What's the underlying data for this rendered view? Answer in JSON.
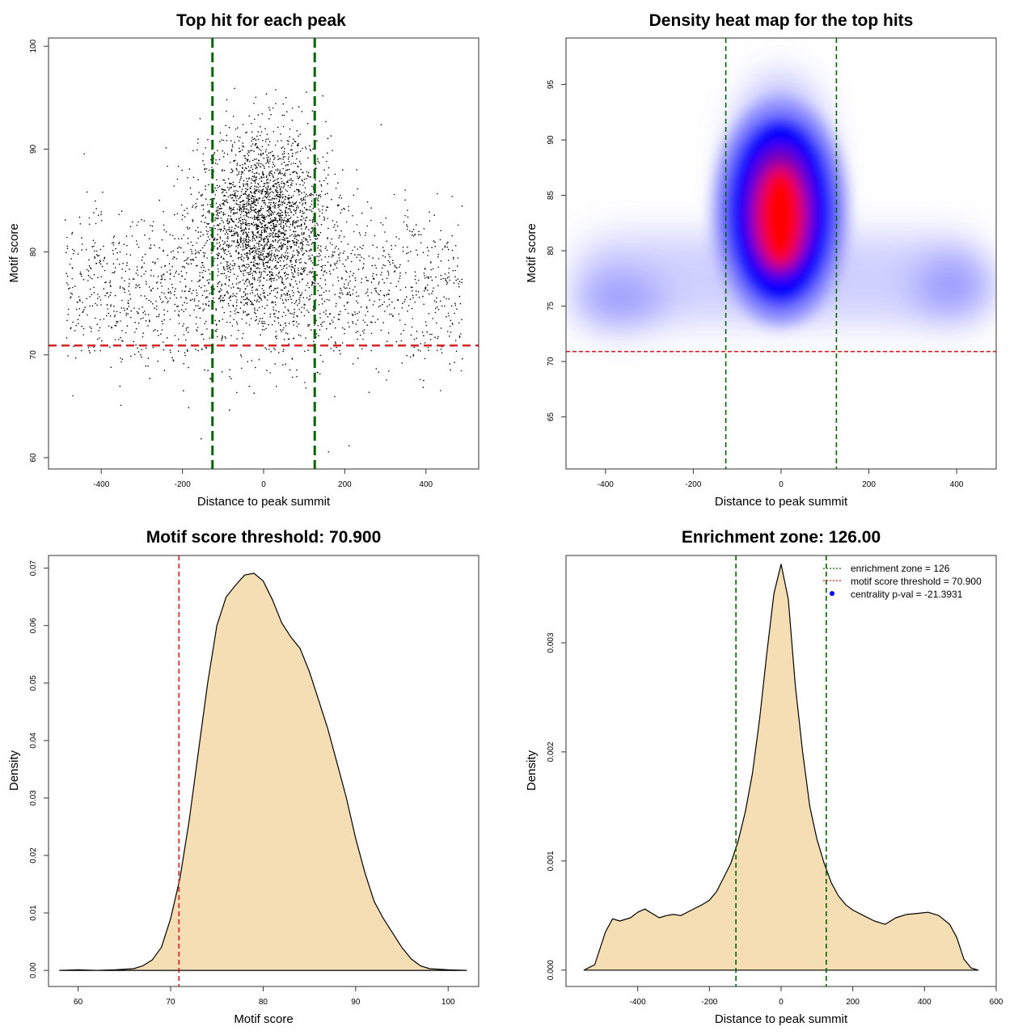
{
  "chart_data": [
    {
      "id": "scatter",
      "type": "scatter",
      "title": "Top hit for each peak",
      "xlabel": "Distance to peak summit",
      "ylabel": "Motif score",
      "xlim": [
        -530,
        530
      ],
      "ylim": [
        58.9,
        100.8
      ],
      "xticks": [
        -400,
        -200,
        0,
        200,
        400
      ],
      "yticks": [
        60,
        70,
        80,
        90,
        100
      ],
      "threshold_y": 70.9,
      "zone_x": [
        -126,
        126
      ],
      "point_distribution": {
        "uniform_background_points": 1600,
        "central_cluster_points": 2400,
        "background_x_range": [
          -490,
          490
        ],
        "background_score_mean": 76.5,
        "background_score_sd": 3.8,
        "cluster_x_mean": 0,
        "cluster_x_sd": 80,
        "cluster_score_mean": 83,
        "cluster_score_sd": 4.3
      },
      "colors": {
        "points": "#000000",
        "threshold": "#d7191c",
        "zone": "#006400"
      }
    },
    {
      "id": "heatmap",
      "type": "heatmap",
      "title": "Density heat map for the top hits",
      "xlabel": "Distance to peak summit",
      "ylabel": "Motif score",
      "xlim": [
        -490,
        490
      ],
      "ylim": [
        60.3,
        99.2
      ],
      "xticks": [
        -400,
        -200,
        0,
        200,
        400
      ],
      "yticks": [
        65,
        70,
        75,
        80,
        85,
        90,
        95
      ],
      "threshold_y": 70.9,
      "zone_x": [
        -126,
        126
      ],
      "density_peak": {
        "x": 0,
        "y": 83
      },
      "colors": {
        "low": "#ffffff",
        "mid": "#0000ff",
        "high": "#ff0000",
        "threshold": "#d7191c",
        "zone": "#006400"
      }
    },
    {
      "id": "score-density",
      "type": "area",
      "title": "Motif score threshold: 70.900",
      "xlabel": "Motif score",
      "ylabel": "Density",
      "xlim": [
        56.8,
        103.3
      ],
      "ylim": [
        -0.0028,
        0.0722
      ],
      "xticks": [
        60,
        70,
        80,
        90,
        100
      ],
      "yticks": [
        "0.00",
        "0.01",
        "0.02",
        "0.03",
        "0.04",
        "0.05",
        "0.06",
        "0.07"
      ],
      "x": [
        58,
        60,
        62,
        64,
        66,
        67,
        68,
        69,
        70,
        71,
        72,
        73,
        74,
        75,
        76,
        77,
        78,
        79,
        80,
        81,
        82,
        83,
        84,
        85,
        86,
        87,
        88,
        89,
        90,
        91,
        92,
        93,
        94,
        95,
        96,
        97,
        98,
        100,
        102
      ],
      "y": [
        0.0,
        0.0001,
        0.0,
        0.0001,
        0.0003,
        0.0008,
        0.0018,
        0.004,
        0.009,
        0.016,
        0.026,
        0.038,
        0.05,
        0.06,
        0.065,
        0.067,
        0.0688,
        0.0691,
        0.0678,
        0.0645,
        0.0605,
        0.058,
        0.056,
        0.052,
        0.047,
        0.042,
        0.036,
        0.03,
        0.023,
        0.017,
        0.012,
        0.009,
        0.0065,
        0.004,
        0.002,
        0.0008,
        0.0003,
        0.0001,
        0.0
      ],
      "threshold_x": 70.9,
      "colors": {
        "fill": "#f5deb3",
        "line": "#000000",
        "threshold": "#d7191c"
      }
    },
    {
      "id": "distance-density",
      "type": "area",
      "title": "Enrichment zone: 126.00",
      "xlabel": "Distance to peak summit",
      "ylabel": "Density",
      "xlim": [
        -600,
        600
      ],
      "ylim": [
        -0.00015,
        0.0038
      ],
      "xticks": [
        -400,
        -200,
        0,
        200,
        400,
        600
      ],
      "yticks": [
        "0.000",
        "0.001",
        "0.002",
        "0.003"
      ],
      "x": [
        -550,
        -520,
        -490,
        -470,
        -450,
        -420,
        -400,
        -380,
        -360,
        -340,
        -320,
        -300,
        -280,
        -250,
        -220,
        -200,
        -180,
        -160,
        -140,
        -120,
        -100,
        -80,
        -60,
        -40,
        -20,
        0,
        20,
        40,
        60,
        80,
        100,
        120,
        140,
        160,
        180,
        200,
        230,
        260,
        290,
        320,
        350,
        380,
        410,
        440,
        470,
        490,
        510,
        530,
        550
      ],
      "y": [
        0.0,
        5e-05,
        0.00035,
        0.00047,
        0.00045,
        0.00048,
        0.00053,
        0.00056,
        0.00052,
        0.00048,
        0.0005,
        0.00051,
        0.0005,
        0.00055,
        0.0006,
        0.00064,
        0.00072,
        0.00085,
        0.00098,
        0.00118,
        0.00145,
        0.0018,
        0.0023,
        0.0029,
        0.00345,
        0.00372,
        0.0034,
        0.0026,
        0.002,
        0.0015,
        0.0012,
        0.00098,
        0.0008,
        0.00068,
        0.0006,
        0.00055,
        0.0005,
        0.00045,
        0.00042,
        0.00048,
        0.00051,
        0.00052,
        0.00053,
        0.0005,
        0.00042,
        0.0003,
        0.0001,
        2e-05,
        0.0
      ],
      "zone_x": [
        -126,
        126
      ],
      "legend": {
        "position": "top-right",
        "entries": [
          {
            "label": "enrichment zone = 126",
            "style": "dotted-line",
            "color": "#006400"
          },
          {
            "label": "motif score threshold = 70.900",
            "style": "dotted-line",
            "color": "#d7191c"
          },
          {
            "label": "centrality p-val = -21.3931",
            "style": "point",
            "color": "#0000ff"
          }
        ]
      },
      "colors": {
        "fill": "#f5deb3",
        "line": "#000000",
        "zone": "#006400"
      }
    }
  ]
}
